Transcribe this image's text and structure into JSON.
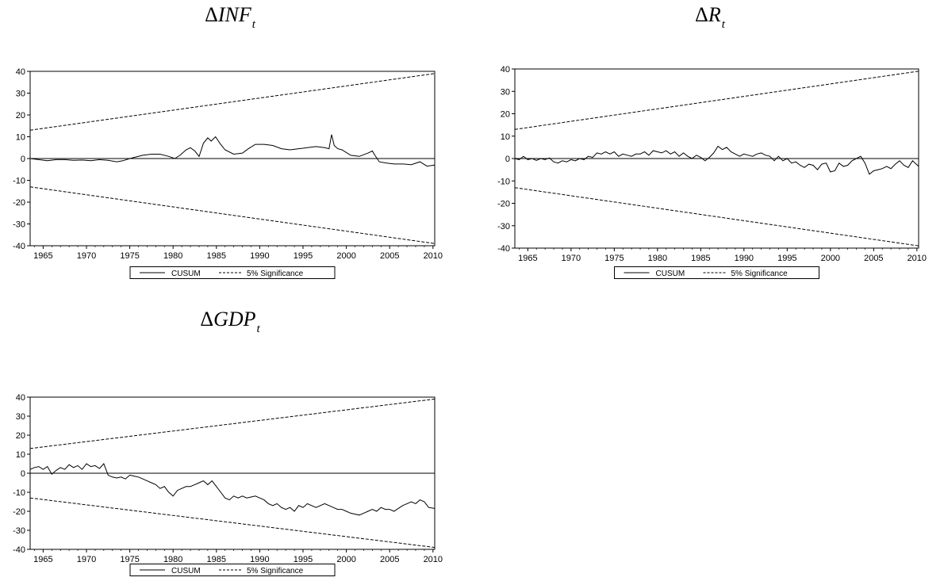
{
  "chart_data": [
    {
      "type": "line",
      "title_delta": "Δ",
      "title_var": "INF",
      "title_sub": "t",
      "xlim": [
        1963.5,
        2010.2
      ],
      "ylim": [
        -40,
        40
      ],
      "xticks": [
        "1965",
        "1970",
        "1975",
        "1980",
        "1985",
        "1990",
        "1995",
        "2000",
        "2005",
        "2010"
      ],
      "yticks": [
        "40",
        "30",
        "20",
        "10",
        "0",
        "-10",
        "-20",
        "-30",
        "-40"
      ],
      "legend": [
        "CUSUM",
        "5% Significance"
      ],
      "legend_position": "bottom-center",
      "series": [
        {
          "name": "CUSUM",
          "x": [
            1963.5,
            1964.5,
            1965.5,
            1966.5,
            1967.5,
            1968.5,
            1969.5,
            1970.5,
            1971.5,
            1972.5,
            1973.5,
            1974.2,
            1975,
            1975.5,
            1976.5,
            1977.5,
            1978.5,
            1979.5,
            1980.2,
            1980.8,
            1981.5,
            1982,
            1982.5,
            1983,
            1983.5,
            1984,
            1984.4,
            1984.9,
            1985.4,
            1986,
            1987,
            1988,
            1988.7,
            1989.5,
            1990.5,
            1991.5,
            1992.5,
            1993.5,
            1994.5,
            1995.5,
            1996.5,
            1997.5,
            1998,
            1998.3,
            1998.6,
            1999,
            1999.5,
            2000.5,
            2001.5,
            2002.5,
            2003,
            2003.3,
            2003.8,
            2004.5,
            2005.5,
            2006.5,
            2007.5,
            2008.5,
            2009.3,
            2010.2
          ],
          "y": [
            0,
            -0.5,
            -1,
            -0.5,
            -0.5,
            -0.8,
            -0.7,
            -1,
            -0.5,
            -0.8,
            -1.5,
            -1,
            0,
            0.5,
            1.5,
            2,
            2,
            1,
            0,
            1.5,
            4,
            5,
            3.5,
            1,
            7,
            9.5,
            8,
            10,
            7,
            4,
            2,
            2.5,
            4.5,
            6.5,
            6.5,
            6,
            4.5,
            4,
            4.5,
            5,
            5.5,
            5,
            4.5,
            11,
            6,
            4.5,
            4,
            1.5,
            1,
            2.5,
            3.5,
            1.5,
            -1.5,
            -2,
            -2.5,
            -2.5,
            -2.8,
            -1.5,
            -3.5,
            -3
          ]
        },
        {
          "name": "5% Significance",
          "x": [
            1963.5,
            2010.2
          ],
          "upper": [
            13,
            39
          ],
          "lower": [
            -13,
            -39
          ]
        }
      ]
    },
    {
      "type": "line",
      "title_delta": "Δ",
      "title_var": "R",
      "title_sub": "t",
      "xlim": [
        1963.5,
        2010.2
      ],
      "ylim": [
        -40,
        40
      ],
      "xticks": [
        "1965",
        "1970",
        "1975",
        "1980",
        "1985",
        "1990",
        "1995",
        "2000",
        "2005",
        "2010"
      ],
      "yticks": [
        "40",
        "30",
        "20",
        "10",
        "0",
        "-10",
        "-20",
        "-30",
        "-40"
      ],
      "legend": [
        "CUSUM",
        "5% Significance"
      ],
      "legend_position": "bottom-center",
      "series": [
        {
          "name": "CUSUM",
          "x": [
            1963.5,
            1964,
            1964.5,
            1965,
            1965.5,
            1966,
            1966.5,
            1967,
            1967.5,
            1968,
            1968.5,
            1969,
            1969.5,
            1970,
            1970.5,
            1971,
            1971.5,
            1972,
            1972.5,
            1973,
            1973.5,
            1974,
            1974.5,
            1975,
            1975.5,
            1976,
            1976.5,
            1977,
            1977.5,
            1978,
            1978.5,
            1979,
            1979.5,
            1980,
            1980.5,
            1981,
            1981.5,
            1982,
            1982.5,
            1983,
            1983.5,
            1984,
            1984.5,
            1985,
            1985.5,
            1986,
            1986.5,
            1987,
            1987.5,
            1988,
            1988.5,
            1989,
            1989.5,
            1990,
            1990.5,
            1991,
            1991.5,
            1992,
            1992.5,
            1993,
            1993.5,
            1994,
            1994.5,
            1995,
            1995.5,
            1996,
            1996.5,
            1997,
            1997.5,
            1998,
            1998.5,
            1999,
            1999.5,
            2000,
            2000.5,
            2001,
            2001.5,
            2002,
            2002.5,
            2003,
            2003.5,
            2004,
            2004.5,
            2005,
            2005.5,
            2006,
            2006.5,
            2007,
            2007.5,
            2008,
            2008.5,
            2009,
            2009.5,
            2010.2
          ],
          "y": [
            0,
            -0.5,
            1,
            -0.5,
            0,
            -0.8,
            0,
            -0.5,
            0.3,
            -1.5,
            -2,
            -1,
            -1.5,
            -0.5,
            -1,
            0,
            -0.5,
            1,
            0.5,
            2.5,
            2,
            3,
            2,
            3,
            1,
            2,
            1.5,
            1,
            2,
            2,
            3,
            1.5,
            3.5,
            3,
            2.5,
            3.5,
            2,
            3,
            1,
            2.5,
            1,
            0,
            1.5,
            0.5,
            -1,
            0.5,
            2.5,
            5.5,
            4,
            5,
            3,
            2,
            1,
            2,
            1.5,
            1,
            2,
            2.5,
            1.5,
            1,
            -1,
            1,
            -1,
            0,
            -2,
            -1.5,
            -3,
            -4,
            -2.5,
            -3,
            -5,
            -2.5,
            -2,
            -6,
            -5.5,
            -2,
            -3.5,
            -3,
            -1,
            0,
            1,
            -2,
            -7,
            -5.5,
            -5,
            -4.5,
            -3.5,
            -4.5,
            -2.5,
            -1,
            -3,
            -4,
            -1,
            -3.5
          ]
        },
        {
          "name": "5% Significance",
          "x": [
            1963.5,
            2010.2
          ],
          "upper": [
            13,
            39
          ],
          "lower": [
            -13,
            -39
          ]
        }
      ]
    },
    {
      "type": "line",
      "title_delta": "Δ",
      "title_var": "GDP",
      "title_sub": "t",
      "xlim": [
        1963.5,
        2010.2
      ],
      "ylim": [
        -40,
        40
      ],
      "xticks": [
        "1965",
        "1970",
        "1975",
        "1980",
        "1985",
        "1990",
        "1995",
        "2000",
        "2005",
        "2010"
      ],
      "yticks": [
        "40",
        "30",
        "20",
        "10",
        "0",
        "-10",
        "-20",
        "-30",
        "-40"
      ],
      "legend": [
        "CUSUM",
        "5% Significance"
      ],
      "legend_position": "bottom-center",
      "series": [
        {
          "name": "CUSUM",
          "x": [
            1963.5,
            1964,
            1964.5,
            1965,
            1965.5,
            1966,
            1966.5,
            1967,
            1967.5,
            1968,
            1968.5,
            1969,
            1969.5,
            1970,
            1970.5,
            1971,
            1971.5,
            1972,
            1972.5,
            1973,
            1973.5,
            1974,
            1974.5,
            1975,
            1975.5,
            1976,
            1976.5,
            1977,
            1977.5,
            1978,
            1978.5,
            1979,
            1979.5,
            1980,
            1980.5,
            1981,
            1981.5,
            1982,
            1982.5,
            1983,
            1983.5,
            1984,
            1984.5,
            1985,
            1985.5,
            1986,
            1986.5,
            1987,
            1987.5,
            1988,
            1988.5,
            1989,
            1989.5,
            1990,
            1990.5,
            1991,
            1991.5,
            1992,
            1992.5,
            1993,
            1993.5,
            1994,
            1994.5,
            1995,
            1995.5,
            1996,
            1996.5,
            1997,
            1997.5,
            1998,
            1998.5,
            1999,
            1999.5,
            2000,
            2000.5,
            2001,
            2001.5,
            2002,
            2002.5,
            2003,
            2003.5,
            2004,
            2004.5,
            2005,
            2005.5,
            2006,
            2006.5,
            2007,
            2007.5,
            2008,
            2008.5,
            2009,
            2009.5,
            2010.2
          ],
          "y": [
            2,
            3,
            3.5,
            2,
            3.5,
            -0.5,
            1.5,
            3,
            2,
            4.5,
            3,
            4,
            2,
            5,
            3.5,
            4,
            2.5,
            5,
            -1,
            -2,
            -2.5,
            -2,
            -3,
            -1,
            -1.5,
            -2,
            -3,
            -4,
            -5,
            -6,
            -8,
            -7,
            -10,
            -12,
            -9,
            -8,
            -7,
            -7,
            -6,
            -5,
            -4,
            -6,
            -4,
            -7,
            -10,
            -13,
            -14,
            -12,
            -13,
            -12,
            -13,
            -12.5,
            -12,
            -13,
            -14,
            -16,
            -17,
            -16,
            -18,
            -19,
            -18,
            -20,
            -17,
            -18,
            -16,
            -17,
            -18,
            -17,
            -16,
            -17,
            -18,
            -19,
            -19,
            -20,
            -21,
            -21.5,
            -22,
            -21,
            -20,
            -19,
            -20,
            -18,
            -19,
            -19,
            -20,
            -18.5,
            -17,
            -16,
            -15,
            -16,
            -14,
            -15,
            -18,
            -18.5
          ]
        },
        {
          "name": "5% Significance",
          "x": [
            1963.5,
            2010.2
          ],
          "upper": [
            13,
            39
          ],
          "lower": [
            -13,
            -39
          ]
        }
      ]
    }
  ]
}
